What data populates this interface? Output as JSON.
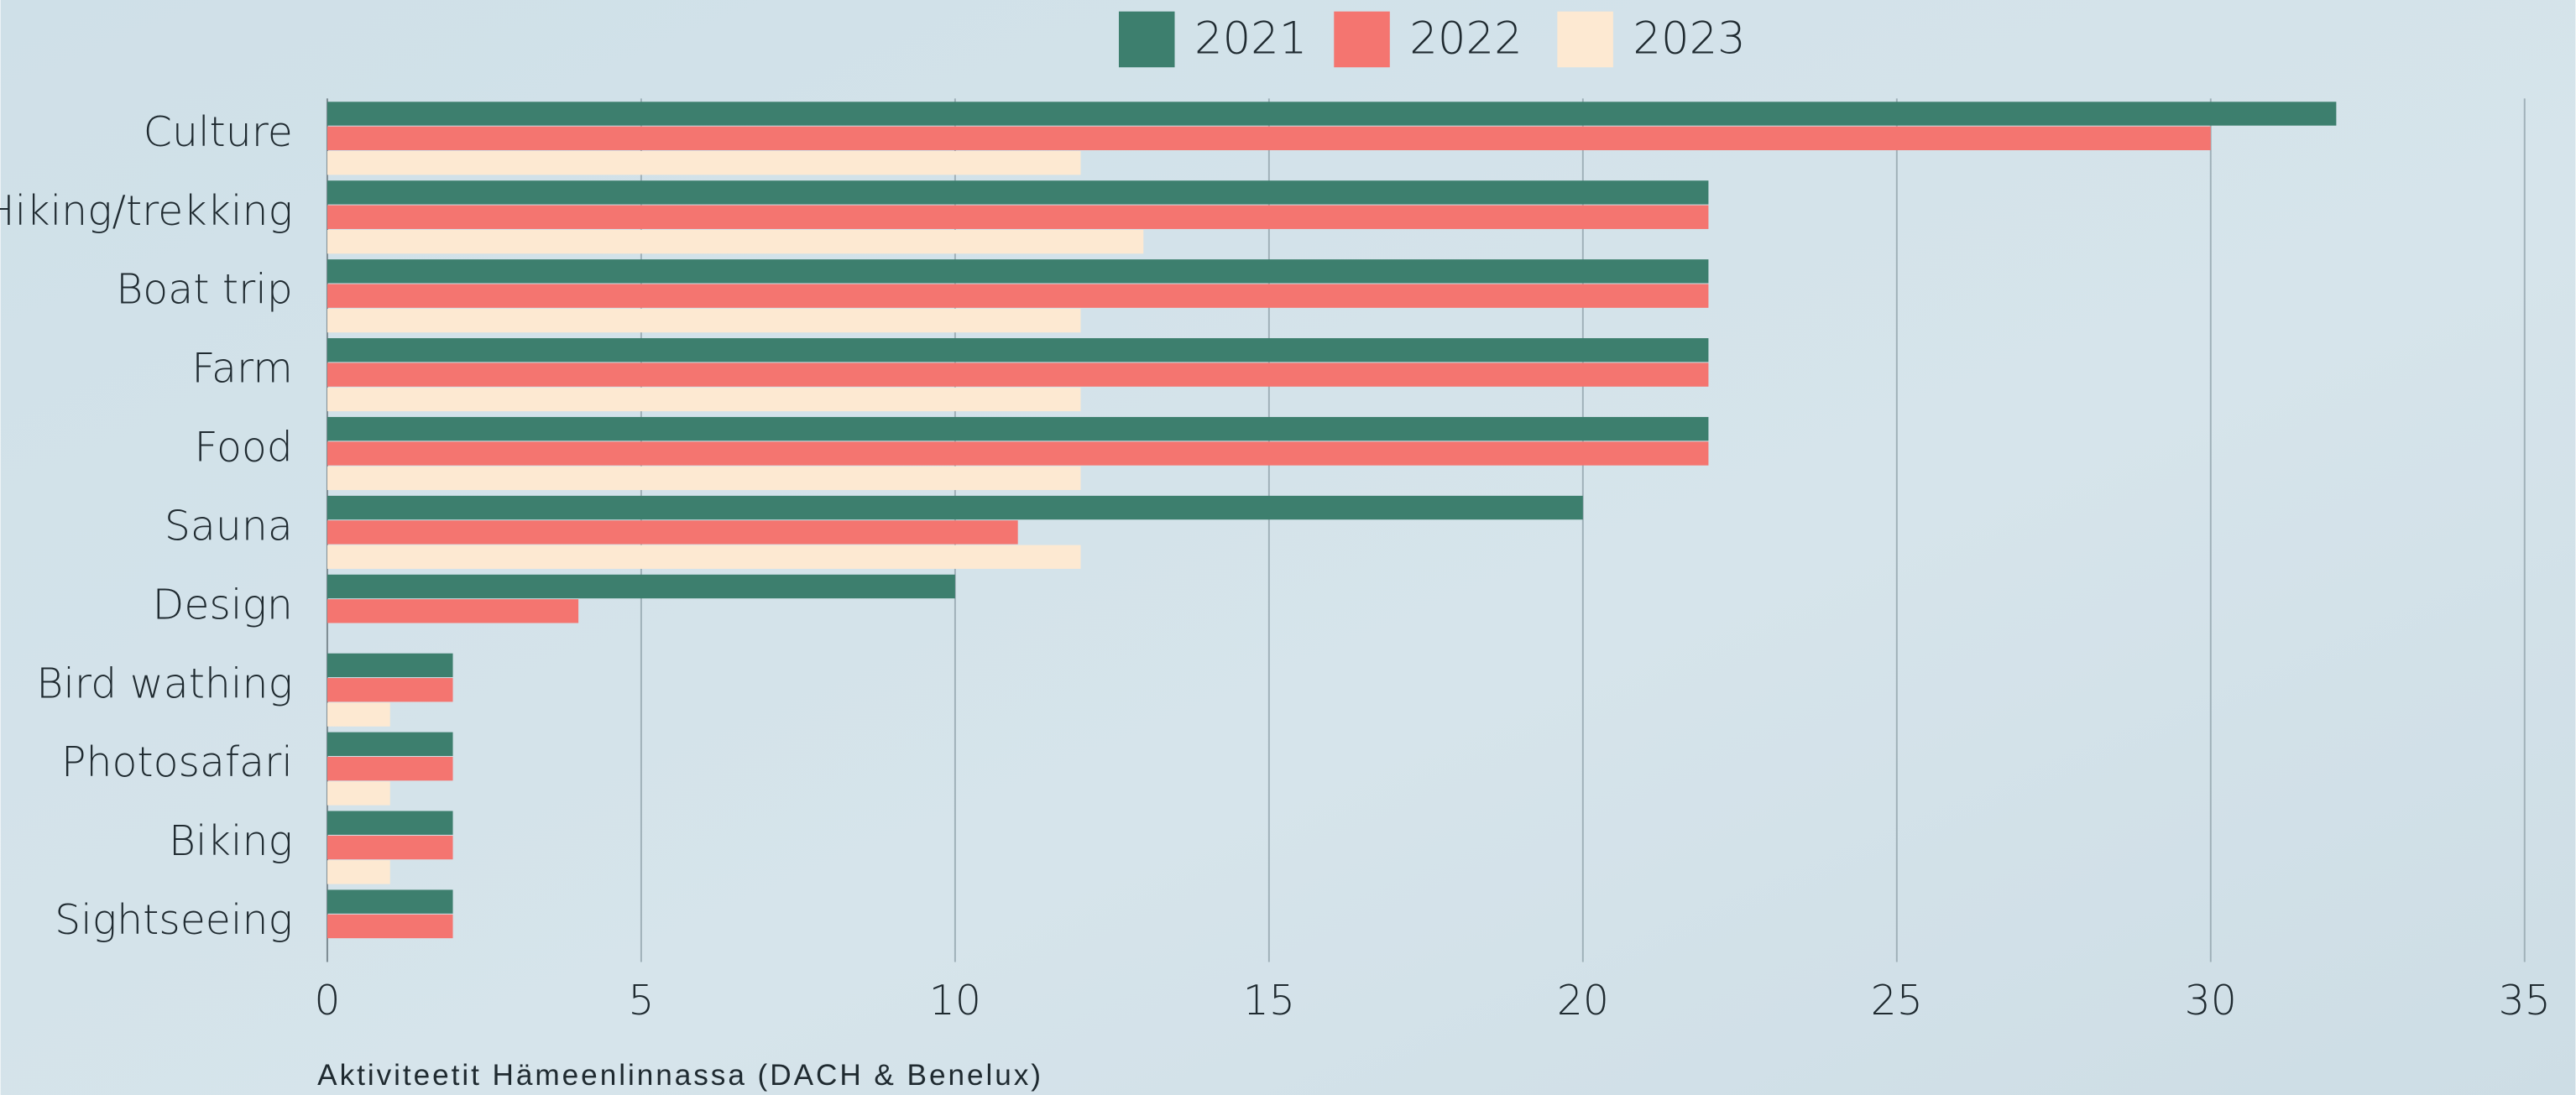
{
  "chart_data": {
    "type": "bar",
    "orientation": "horizontal",
    "title": "Aktiviteetit Hämeenlinnassa (DACH & Benelux)",
    "categories": [
      "Culture",
      "Hiking/trekking",
      "Boat trip",
      "Farm",
      "Food",
      "Sauna",
      "Design",
      "Bird wathing",
      "Photosafari",
      "Biking",
      "Sightseeing"
    ],
    "series": [
      {
        "name": "2021",
        "color": "#3d7f6e",
        "values": [
          32,
          22,
          22,
          22,
          22,
          20,
          10,
          2,
          2,
          2,
          2
        ]
      },
      {
        "name": "2022",
        "color": "#f47570",
        "values": [
          30,
          22,
          22,
          22,
          22,
          11,
          4,
          2,
          2,
          2,
          2
        ]
      },
      {
        "name": "2023",
        "color": "#fde9d2",
        "values": [
          12,
          13,
          12,
          12,
          12,
          12,
          0,
          1,
          1,
          1,
          0
        ]
      }
    ],
    "xlim": [
      0,
      35
    ],
    "xticks": [
      0,
      5,
      10,
      15,
      20,
      25,
      30,
      35
    ],
    "grid": true,
    "legend": "top"
  }
}
